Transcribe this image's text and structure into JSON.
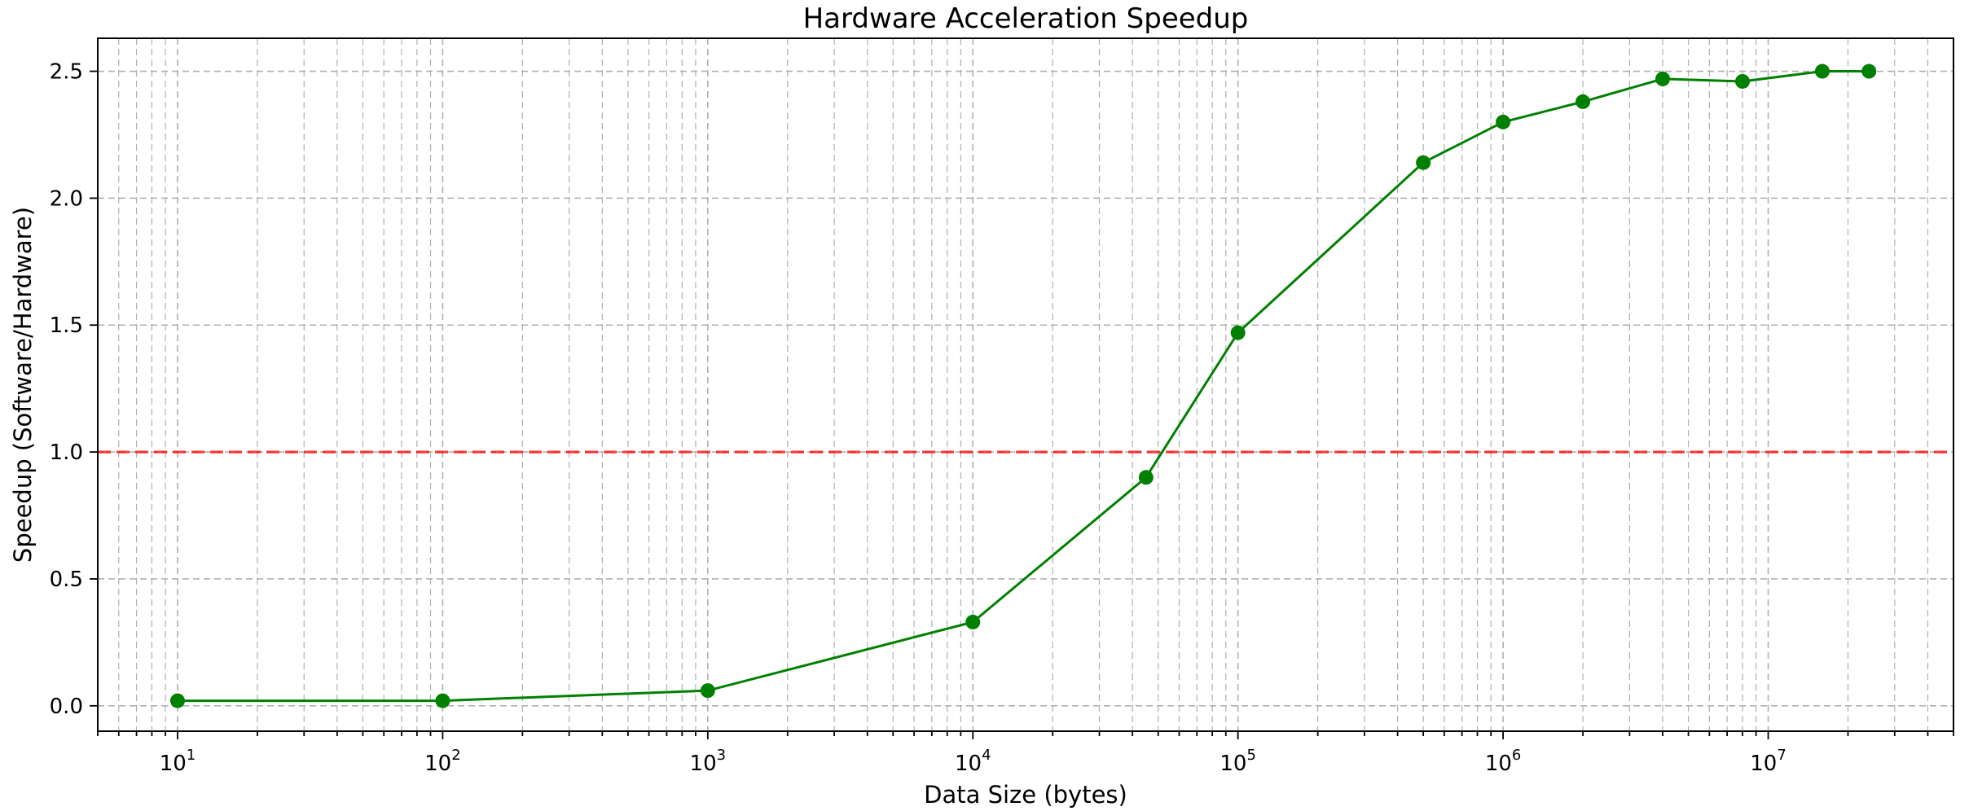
{
  "chart_data": {
    "type": "line",
    "title": "Hardware Acceleration Speedup",
    "xlabel": "Data Size (bytes)",
    "ylabel": "Speedup (Software/Hardware)",
    "x_scale": "log",
    "xlim": [
      5,
      50000000
    ],
    "ylim": [
      -0.1,
      2.63
    ],
    "grid": true,
    "x_tick_labels": [
      {
        "value": 10,
        "base": "10",
        "exp": "1"
      },
      {
        "value": 100,
        "base": "10",
        "exp": "2"
      },
      {
        "value": 1000,
        "base": "10",
        "exp": "3"
      },
      {
        "value": 10000,
        "base": "10",
        "exp": "4"
      },
      {
        "value": 100000,
        "base": "10",
        "exp": "5"
      },
      {
        "value": 1000000,
        "base": "10",
        "exp": "6"
      },
      {
        "value": 10000000,
        "base": "10",
        "exp": "7"
      }
    ],
    "y_ticks": [
      0.0,
      0.5,
      1.0,
      1.5,
      2.0,
      2.5
    ],
    "y_tick_labels": [
      "0.0",
      "0.5",
      "1.0",
      "1.5",
      "2.0",
      "2.5"
    ],
    "series": [
      {
        "color": "#008000",
        "marker": "circle",
        "x": [
          10,
          100,
          1000,
          10000,
          45000,
          100000,
          500000,
          1000000,
          2000000,
          4000000,
          8000000,
          16000000,
          24000000
        ],
        "y": [
          0.02,
          0.02,
          0.06,
          0.33,
          0.9,
          1.47,
          2.14,
          2.3,
          2.38,
          2.47,
          2.46,
          2.5,
          2.5
        ]
      }
    ],
    "reference_lines": [
      {
        "orientation": "horizontal",
        "y": 1.0,
        "color": "#ff0000",
        "style": "dashed"
      }
    ]
  }
}
